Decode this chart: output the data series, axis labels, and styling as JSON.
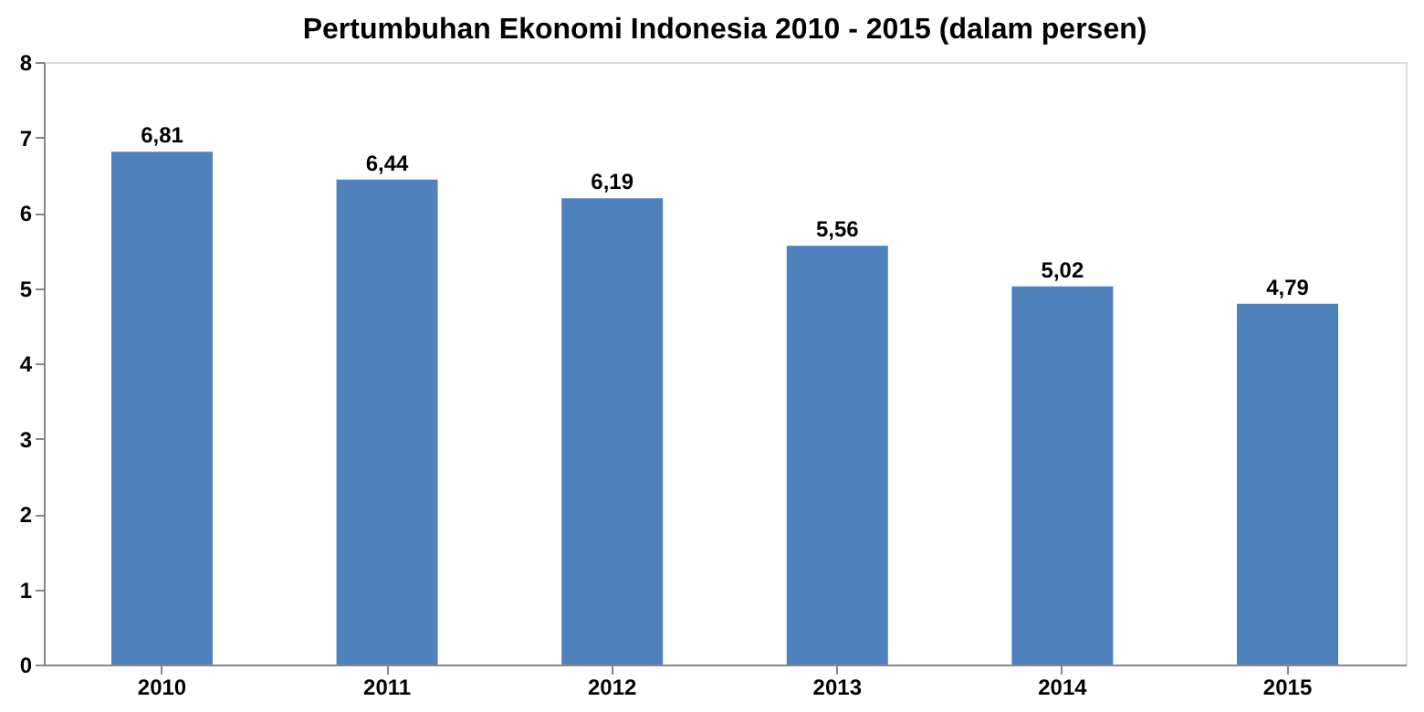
{
  "chart_data": {
    "type": "bar",
    "title": "Pertumbuhan Ekonomi  Indonesia  2010 - 2015 (dalam persen)",
    "categories": [
      "2010",
      "2011",
      "2012",
      "2013",
      "2014",
      "2015"
    ],
    "values": [
      6.81,
      6.44,
      6.19,
      5.56,
      5.02,
      4.79
    ],
    "value_labels": [
      "6,81",
      "6,44",
      "6,19",
      "5,56",
      "5,02",
      "4,79"
    ],
    "color": "#4f81bd",
    "ylim": [
      0,
      8
    ],
    "yticks": [
      0,
      1,
      2,
      3,
      4,
      5,
      6,
      7,
      8
    ],
    "grid": false
  }
}
